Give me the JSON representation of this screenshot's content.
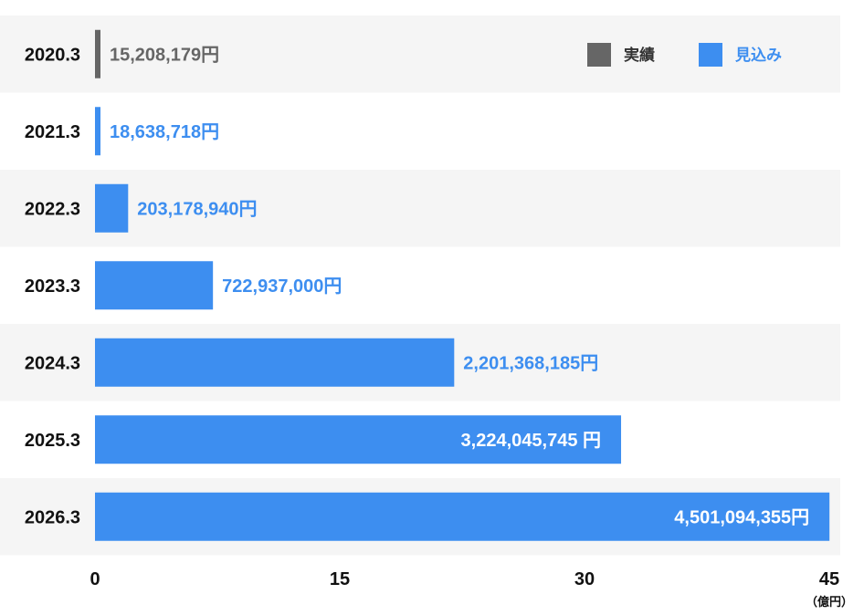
{
  "chart_data": {
    "type": "bar",
    "orientation": "horizontal",
    "categories": [
      "2020.3",
      "2021.3",
      "2022.3",
      "2023.3",
      "2024.3",
      "2025.3",
      "2026.3"
    ],
    "values": [
      15208179,
      18638718,
      203178940,
      722937000,
      2201368185,
      3224045745,
      4501094355
    ],
    "value_labels": [
      "15,208,179円",
      "18,638,718円",
      "203,178,940円",
      "722,937,000円",
      "2,201,368,185円",
      "3,224,045,745 円",
      "4,501,094,355円"
    ],
    "value_status": [
      "actual",
      "forecast",
      "forecast",
      "forecast",
      "forecast",
      "forecast",
      "forecast"
    ],
    "series": [
      {
        "name": "実績",
        "color": "#666666"
      },
      {
        "name": "見込み",
        "color": "#3d8ef0"
      }
    ],
    "x_ticks": [
      "0",
      "15",
      "30",
      "45"
    ],
    "x_unit": "（億円）",
    "xlim": [
      0,
      4500000000
    ],
    "legend_position": "top-right",
    "grid": false,
    "row_band_color": "#f5f5f5"
  }
}
